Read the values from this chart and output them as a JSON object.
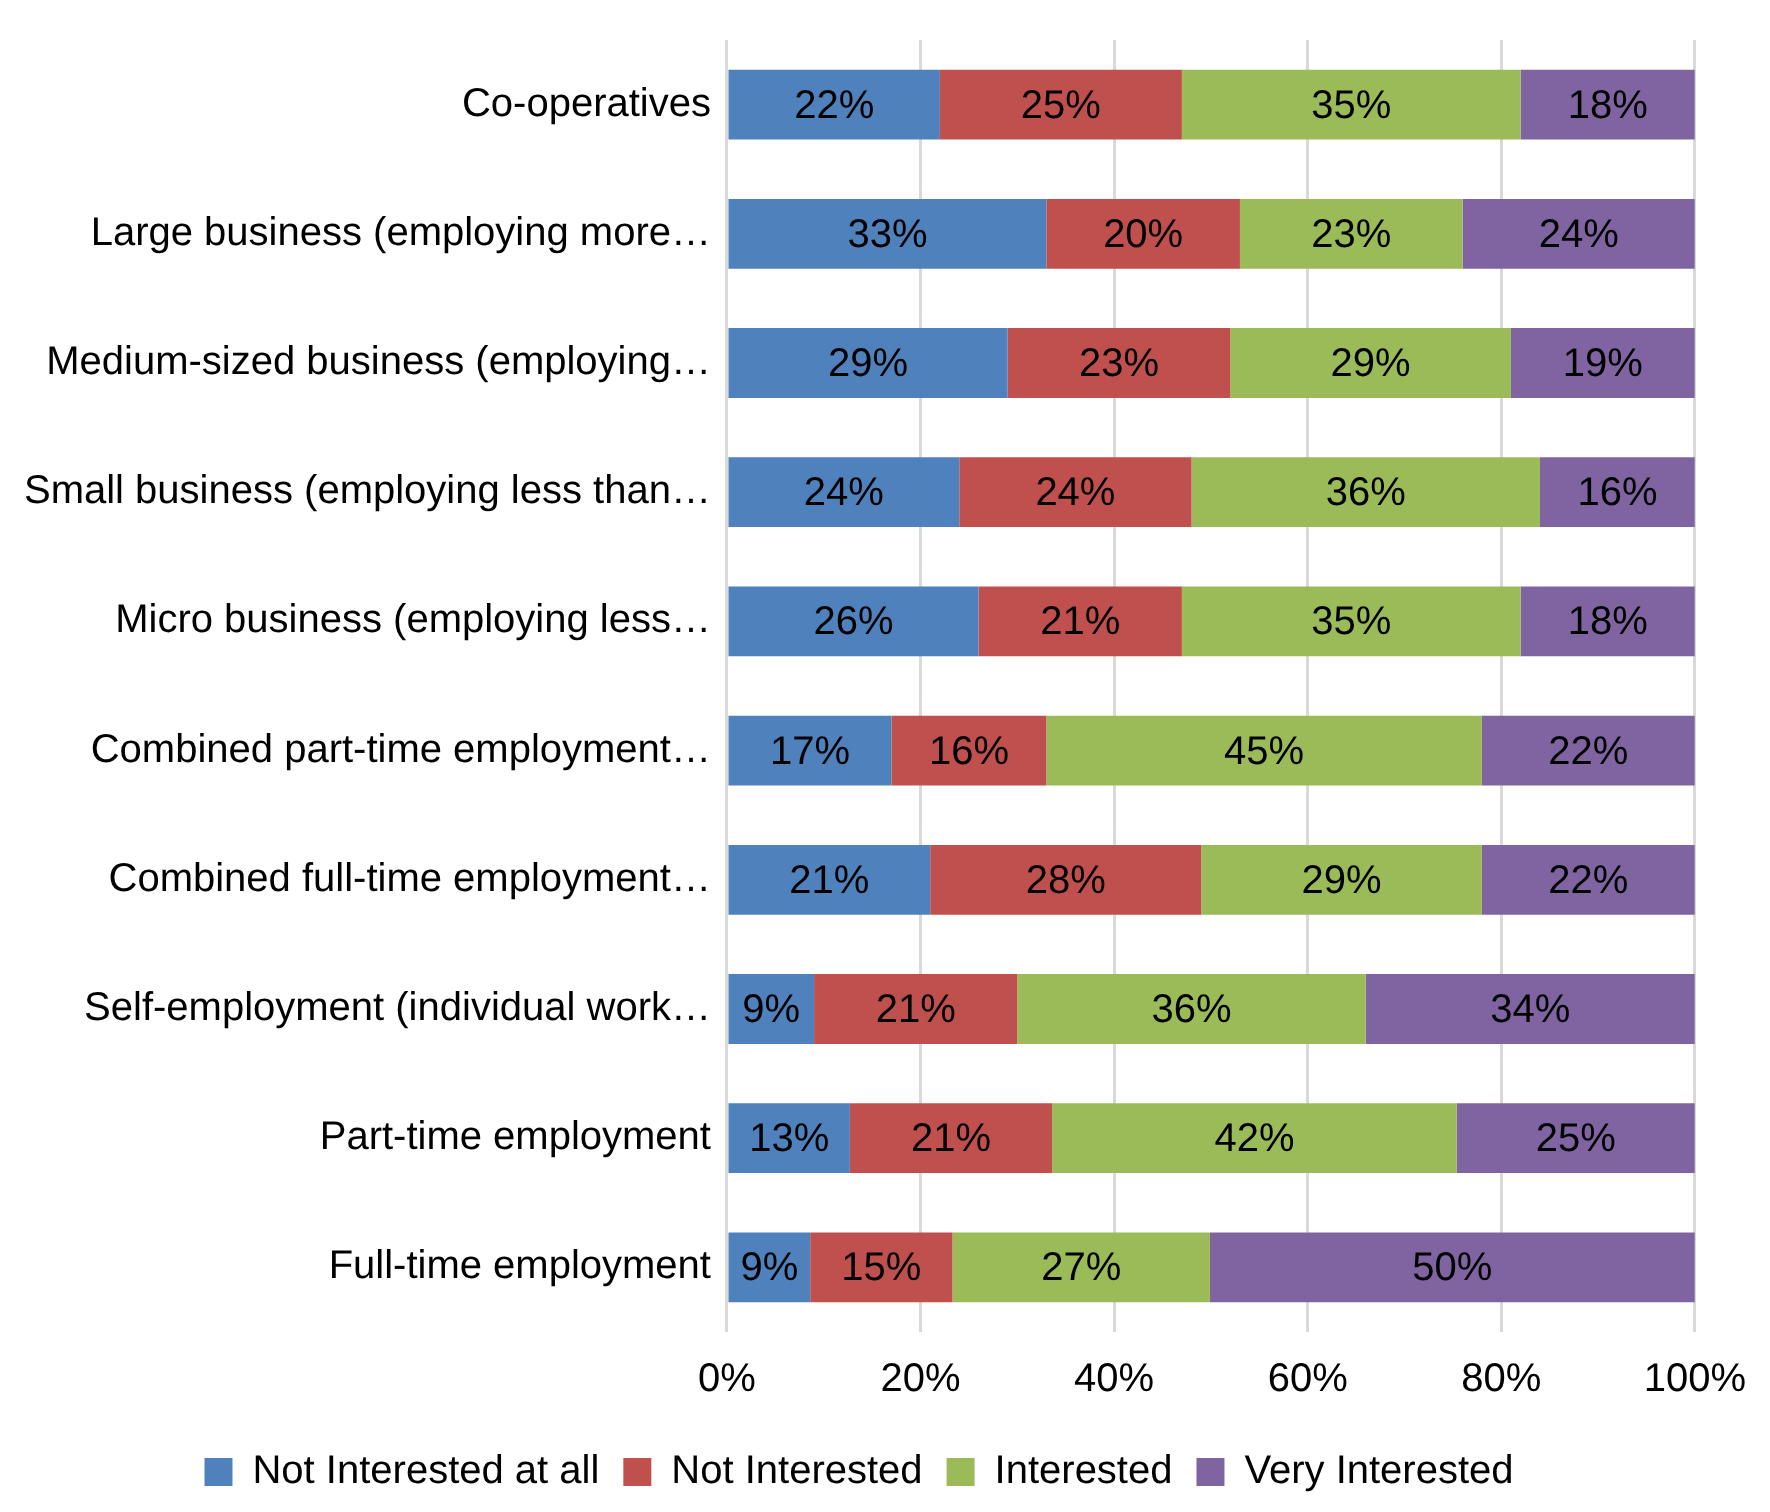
{
  "chart_data": {
    "type": "bar",
    "orientation": "horizontal",
    "stacked": true,
    "grid": "x",
    "legend": "bottom",
    "categories": [
      "Co-operatives",
      "Large business (employing more…",
      "Medium-sized business (employing…",
      "Small business (employing less than…",
      "Micro business (employing less…",
      "Combined part-time employment…",
      "Combined full-time employment…",
      "Self-employment (individual work…",
      "Part-time employment",
      "Full-time employment"
    ],
    "xlim": [
      0,
      100
    ],
    "xticks": [
      {
        "value": 0,
        "label": "0%"
      },
      {
        "value": 20,
        "label": "20%"
      },
      {
        "value": 40,
        "label": "40%"
      },
      {
        "value": 60,
        "label": "60%"
      },
      {
        "value": 80,
        "label": "80%"
      },
      {
        "value": 100,
        "label": "100%"
      }
    ],
    "series": [
      {
        "name": "Not Interested at all",
        "color": "#4f81bd",
        "values": [
          22,
          33,
          29,
          24,
          26,
          17,
          21,
          9,
          12.7,
          8.6
        ],
        "value_labels": [
          "22%",
          "33%",
          "29%",
          "24%",
          "26%",
          "17%",
          "21%",
          "9%",
          "13%",
          "9%"
        ]
      },
      {
        "name": "Not Interested",
        "color": "#c0504d",
        "values": [
          25,
          20,
          23,
          24,
          21,
          16,
          28,
          21,
          20.9,
          14.7
        ],
        "value_labels": [
          "25%",
          "20%",
          "23%",
          "24%",
          "21%",
          "16%",
          "28%",
          "21%",
          "21%",
          "15%"
        ]
      },
      {
        "name": "Interested",
        "color": "#9bbb59",
        "values": [
          35,
          23,
          29,
          36,
          35,
          45,
          29,
          36,
          41.8,
          26.6
        ],
        "value_labels": [
          "35%",
          "23%",
          "29%",
          "36%",
          "35%",
          "45%",
          "29%",
          "36%",
          "42%",
          "27%"
        ]
      },
      {
        "name": "Very Interested",
        "color": "#8064a2",
        "values": [
          18,
          24,
          19,
          16,
          18,
          22,
          22,
          34,
          24.6,
          50.1
        ],
        "value_labels": [
          "18%",
          "24%",
          "19%",
          "16%",
          "18%",
          "22%",
          "22%",
          "34%",
          "25%",
          "50%"
        ]
      }
    ]
  }
}
